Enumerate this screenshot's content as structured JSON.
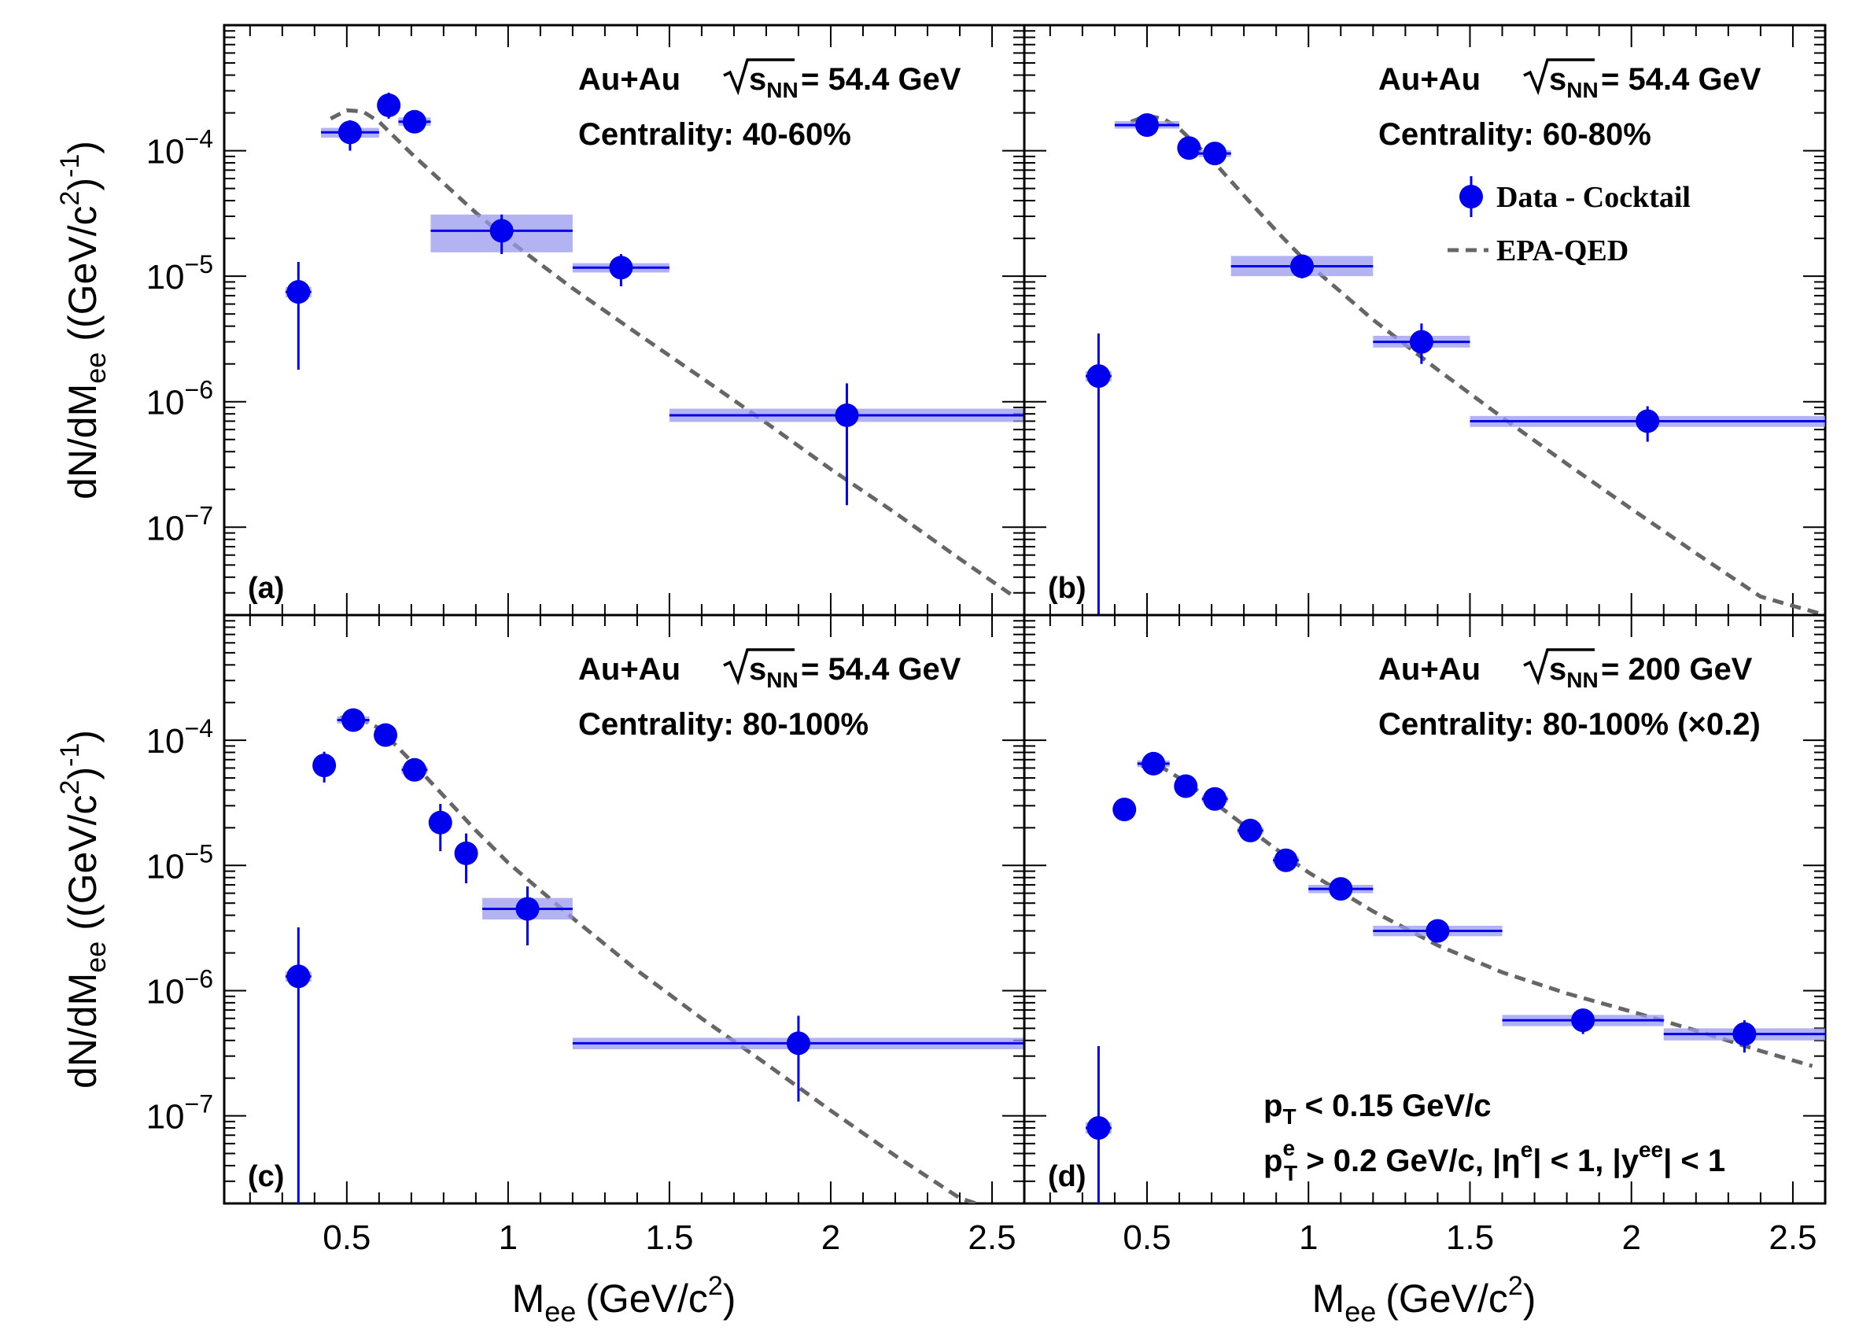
{
  "chart_data": [
    {
      "type": "scatter",
      "panel": "(a)",
      "annotation": {
        "system": "Au+Au",
        "energy": "= 54.4 GeV",
        "centrality": "Centrality: 40-60%"
      },
      "xlabel": "M_ee (GeV/c^2)",
      "ylabel": "dN/dM_ee ((GeV/c^2)^-1)",
      "xlim": [
        0.12,
        2.6
      ],
      "ylim_log10": [
        -7.7,
        -3.0
      ],
      "y_scale": "log",
      "x_tick_labels": [
        "0.5",
        "1",
        "1.5",
        "2",
        "2.5"
      ],
      "y_tick_labels": [
        "10^-7",
        "10^-6",
        "10^-5",
        "10^-4"
      ],
      "series": [
        {
          "name": "Data - Cocktail",
          "points": [
            {
              "x": 0.35,
              "y": 7.5e-06,
              "xlo": 0.31,
              "xhi": 0.39,
              "ylo": 1.8e-06,
              "yhi": 1.3e-05,
              "sys_lo": 6.8e-06,
              "sys_hi": 8.2e-06
            },
            {
              "x": 0.51,
              "y": 0.00014,
              "xlo": 0.42,
              "xhi": 0.6,
              "ylo": 0.0001,
              "yhi": 0.000175,
              "sys_lo": 0.000127,
              "sys_hi": 0.000152
            },
            {
              "x": 0.63,
              "y": 0.00023,
              "xlo": 0.6,
              "xhi": 0.66,
              "ylo": 0.00018,
              "yhi": 0.00029,
              "sys_lo": 0.00021,
              "sys_hi": 0.00025
            },
            {
              "x": 0.71,
              "y": 0.00017,
              "xlo": 0.66,
              "xhi": 0.76,
              "ylo": 0.000145,
              "yhi": 0.0002,
              "sys_lo": 0.000158,
              "sys_hi": 0.000184
            },
            {
              "x": 0.98,
              "y": 2.3e-05,
              "xlo": 0.76,
              "xhi": 1.2,
              "ylo": 1.5e-05,
              "yhi": 3.1e-05,
              "sys_lo": 1.55e-05,
              "sys_hi": 3.1e-05
            },
            {
              "x": 1.35,
              "y": 1.17e-05,
              "xlo": 1.2,
              "xhi": 1.5,
              "ylo": 8.3e-06,
              "yhi": 1.5e-05,
              "sys_lo": 1.07e-05,
              "sys_hi": 1.27e-05
            },
            {
              "x": 2.05,
              "y": 7.8e-07,
              "xlo": 1.5,
              "xhi": 2.6,
              "ylo": 1.5e-07,
              "yhi": 1.4e-06,
              "sys_lo": 6.9e-07,
              "sys_hi": 8.8e-07
            }
          ]
        },
        {
          "name": "EPA-QED",
          "x": [
            0.45,
            0.5,
            0.55,
            0.6,
            0.7,
            0.8,
            0.9,
            1.0,
            1.2,
            1.4,
            1.6,
            1.8,
            2.0,
            2.2,
            2.4,
            2.56
          ],
          "y": [
            0.00018,
            0.00021,
            0.000205,
            0.00017,
            9.5e-05,
            5.5e-05,
            3.2e-05,
            1.95e-05,
            8e-06,
            3.5e-06,
            1.55e-06,
            6.8e-07,
            2.9e-07,
            1.3e-07,
            5.6e-08,
            2.9e-08
          ]
        }
      ]
    },
    {
      "type": "scatter",
      "panel": "(b)",
      "annotation": {
        "system": "Au+Au",
        "energy": "= 54.4 GeV",
        "centrality": "Centrality: 60-80%"
      },
      "xlabel": "M_ee (GeV/c^2)",
      "xlim": [
        0.12,
        2.6
      ],
      "ylim_log10": [
        -7.7,
        -3.0
      ],
      "y_scale": "log",
      "legend": {
        "position": "top-right",
        "entries": [
          "Data - Cocktail",
          "EPA-QED"
        ]
      },
      "series": [
        {
          "name": "Data - Cocktail",
          "points": [
            {
              "x": 0.35,
              "y": 1.6e-06,
              "xlo": 0.31,
              "xhi": 0.39,
              "ylo": 1e-08,
              "yhi": 3.5e-06,
              "sys_lo": 1.45e-06,
              "sys_hi": 1.75e-06
            },
            {
              "x": 0.5,
              "y": 0.00016,
              "xlo": 0.4,
              "xhi": 0.6,
              "ylo": 0.000145,
              "yhi": 0.000185,
              "sys_lo": 0.00015,
              "sys_hi": 0.000172
            },
            {
              "x": 0.63,
              "y": 0.000105,
              "xlo": 0.6,
              "xhi": 0.66,
              "ylo": 9.3e-05,
              "yhi": 0.000118,
              "sys_lo": 9.9e-05,
              "sys_hi": 0.000112
            },
            {
              "x": 0.71,
              "y": 9.5e-05,
              "xlo": 0.66,
              "xhi": 0.76,
              "ylo": 8.5e-05,
              "yhi": 0.000105,
              "sys_lo": 8.9e-05,
              "sys_hi": 0.000101
            },
            {
              "x": 0.98,
              "y": 1.2e-05,
              "xlo": 0.76,
              "xhi": 1.2,
              "ylo": 9.6e-06,
              "yhi": 1.45e-05,
              "sys_lo": 1e-05,
              "sys_hi": 1.45e-05
            },
            {
              "x": 1.35,
              "y": 3e-06,
              "xlo": 1.2,
              "xhi": 1.5,
              "ylo": 2e-06,
              "yhi": 4.2e-06,
              "sys_lo": 2.7e-06,
              "sys_hi": 3.35e-06
            },
            {
              "x": 2.05,
              "y": 7e-07,
              "xlo": 1.5,
              "xhi": 2.6,
              "ylo": 4.8e-07,
              "yhi": 9.2e-07,
              "sys_lo": 6.3e-07,
              "sys_hi": 7.7e-07
            }
          ]
        },
        {
          "name": "EPA-QED",
          "x": [
            0.45,
            0.5,
            0.55,
            0.6,
            0.7,
            0.8,
            0.9,
            1.0,
            1.2,
            1.4,
            1.6,
            1.8,
            2.0,
            2.2,
            2.4,
            2.6
          ],
          "y": [
            0.00017,
            0.00019,
            0.00018,
            0.00015,
            8.5e-05,
            4.4e-05,
            2.3e-05,
            1.25e-05,
            4.5e-06,
            1.8e-06,
            7.5e-07,
            3.2e-07,
            1.4e-07,
            6.2e-08,
            2.8e-08,
            1.2e-08
          ]
        }
      ]
    },
    {
      "type": "scatter",
      "panel": "(c)",
      "annotation": {
        "system": "Au+Au",
        "energy": "= 54.4 GeV",
        "centrality": "Centrality: 80-100%"
      },
      "xlabel": "M_ee (GeV/c^2)",
      "ylabel": "dN/dM_ee ((GeV/c^2)^-1)",
      "xlim": [
        0.12,
        2.6
      ],
      "ylim_log10": [
        -7.7,
        -3.0
      ],
      "y_scale": "log",
      "series": [
        {
          "name": "Data - Cocktail",
          "points": [
            {
              "x": 0.35,
              "y": 1.3e-06,
              "xlo": 0.31,
              "xhi": 0.39,
              "ylo": 1e-08,
              "yhi": 3.2e-06,
              "sys_lo": 1.18e-06,
              "sys_hi": 1.42e-06
            },
            {
              "x": 0.43,
              "y": 6.3e-05,
              "xlo": 0.43,
              "xhi": 0.43,
              "ylo": 4.6e-05,
              "yhi": 8.1e-05,
              "sys_lo": 6.3e-05,
              "sys_hi": 6.3e-05
            },
            {
              "x": 0.52,
              "y": 0.000145,
              "xlo": 0.47,
              "xhi": 0.57,
              "ylo": 0.000128,
              "yhi": 0.000162,
              "sys_lo": 0.000136,
              "sys_hi": 0.000155
            },
            {
              "x": 0.62,
              "y": 0.00011,
              "xlo": 0.62,
              "xhi": 0.62,
              "ylo": 0.0001,
              "yhi": 0.00012,
              "sys_lo": 0.00011,
              "sys_hi": 0.00011
            },
            {
              "x": 0.71,
              "y": 5.8e-05,
              "xlo": 0.67,
              "xhi": 0.75,
              "ylo": 5.1e-05,
              "yhi": 6.5e-05,
              "sys_lo": 5.4e-05,
              "sys_hi": 6.2e-05
            },
            {
              "x": 0.79,
              "y": 2.2e-05,
              "xlo": 0.79,
              "xhi": 0.79,
              "ylo": 1.3e-05,
              "yhi": 3.1e-05,
              "sys_lo": 2.2e-05,
              "sys_hi": 2.2e-05
            },
            {
              "x": 0.87,
              "y": 1.25e-05,
              "xlo": 0.87,
              "xhi": 0.87,
              "ylo": 7.2e-06,
              "yhi": 1.8e-05,
              "sys_lo": 1.25e-05,
              "sys_hi": 1.25e-05
            },
            {
              "x": 1.06,
              "y": 4.5e-06,
              "xlo": 0.92,
              "xhi": 1.2,
              "ylo": 2.3e-06,
              "yhi": 6.8e-06,
              "sys_lo": 3.7e-06,
              "sys_hi": 5.5e-06
            },
            {
              "x": 1.9,
              "y": 3.8e-07,
              "xlo": 1.2,
              "xhi": 2.6,
              "ylo": 1.3e-07,
              "yhi": 6.3e-07,
              "sys_lo": 3.4e-07,
              "sys_hi": 4.2e-07
            }
          ]
        },
        {
          "name": "EPA-QED",
          "x": [
            0.48,
            0.5,
            0.55,
            0.6,
            0.7,
            0.8,
            0.9,
            1.0,
            1.2,
            1.4,
            1.6,
            1.8,
            2.0,
            2.2,
            2.4,
            2.45
          ],
          "y": [
            0.00015,
            0.000155,
            0.000145,
            0.000125,
            6.8e-05,
            3.6e-05,
            1.9e-05,
            1.05e-05,
            3.8e-06,
            1.45e-06,
            6e-07,
            2.6e-07,
            1.1e-07,
            4.8e-08,
            2.2e-08,
            1.8e-08
          ]
        }
      ]
    },
    {
      "type": "scatter",
      "panel": "(d)",
      "annotation": {
        "system": "Au+Au",
        "energy": "= 200 GeV",
        "centrality": "Centrality: 80-100% (×0.2)"
      },
      "cuts": {
        "pt": "p_T < 0.15 GeV/c",
        "single": "p_T^e > 0.2 GeV/c, |η^e| < 1, |y^ee| < 1"
      },
      "xlabel": "M_ee (GeV/c^2)",
      "xlim": [
        0.12,
        2.6
      ],
      "ylim_log10": [
        -7.7,
        -3.0
      ],
      "y_scale": "log",
      "series": [
        {
          "name": "Data - Cocktail",
          "points": [
            {
              "x": 0.35,
              "y": 8e-08,
              "xlo": 0.31,
              "xhi": 0.39,
              "ylo": 1e-08,
              "yhi": 3.6e-07,
              "sys_lo": 7.2e-08,
              "sys_hi": 8.9e-08
            },
            {
              "x": 0.43,
              "y": 2.8e-05,
              "xlo": 0.43,
              "xhi": 0.43,
              "ylo": 2.5e-05,
              "yhi": 3.1e-05,
              "sys_lo": 2.8e-05,
              "sys_hi": 2.8e-05
            },
            {
              "x": 0.52,
              "y": 6.5e-05,
              "xlo": 0.47,
              "xhi": 0.57,
              "ylo": 6e-05,
              "yhi": 7e-05,
              "sys_lo": 6.1e-05,
              "sys_hi": 6.9e-05
            },
            {
              "x": 0.62,
              "y": 4.3e-05,
              "xlo": 0.62,
              "xhi": 0.62,
              "ylo": 3.9e-05,
              "yhi": 4.7e-05,
              "sys_lo": 4.3e-05,
              "sys_hi": 4.3e-05
            },
            {
              "x": 0.71,
              "y": 3.4e-05,
              "xlo": 0.67,
              "xhi": 0.75,
              "ylo": 3.1e-05,
              "yhi": 3.7e-05,
              "sys_lo": 3.2e-05,
              "sys_hi": 3.6e-05
            },
            {
              "x": 0.82,
              "y": 1.9e-05,
              "xlo": 0.78,
              "xhi": 0.86,
              "ylo": 1.75e-05,
              "yhi": 2.05e-05,
              "sys_lo": 1.78e-05,
              "sys_hi": 2.02e-05
            },
            {
              "x": 0.93,
              "y": 1.1e-05,
              "xlo": 0.89,
              "xhi": 0.97,
              "ylo": 1e-05,
              "yhi": 1.2e-05,
              "sys_lo": 1.03e-05,
              "sys_hi": 1.17e-05
            },
            {
              "x": 1.1,
              "y": 6.5e-06,
              "xlo": 1.0,
              "xhi": 1.2,
              "ylo": 6e-06,
              "yhi": 7e-06,
              "sys_lo": 6e-06,
              "sys_hi": 7e-06
            },
            {
              "x": 1.4,
              "y": 3e-06,
              "xlo": 1.2,
              "xhi": 1.6,
              "ylo": 2.8e-06,
              "yhi": 3.2e-06,
              "sys_lo": 2.72e-06,
              "sys_hi": 3.3e-06
            },
            {
              "x": 1.85,
              "y": 5.8e-07,
              "xlo": 1.6,
              "xhi": 2.1,
              "ylo": 4.5e-07,
              "yhi": 7.1e-07,
              "sys_lo": 5.2e-07,
              "sys_hi": 6.4e-07
            },
            {
              "x": 2.35,
              "y": 4.5e-07,
              "xlo": 2.1,
              "xhi": 2.6,
              "ylo": 3.2e-07,
              "yhi": 5.8e-07,
              "sys_lo": 4e-07,
              "sys_hi": 5e-07
            }
          ]
        },
        {
          "name": "EPA-QED",
          "x": [
            0.48,
            0.5,
            0.55,
            0.6,
            0.7,
            0.8,
            0.9,
            1.0,
            1.2,
            1.4,
            1.6,
            1.8,
            2.0,
            2.2,
            2.4,
            2.56
          ],
          "y": [
            6.2e-05,
            6.5e-05,
            6e-05,
            5e-05,
            3.3e-05,
            2.1e-05,
            1.35e-05,
            8.8e-06,
            4.3e-06,
            2.3e-06,
            1.4e-06,
            9.5e-07,
            6.8e-07,
            4.8e-07,
            3.3e-07,
            2.5e-07
          ]
        }
      ]
    }
  ],
  "labels": {
    "x_axis_main": "M",
    "x_axis_sub": "ee",
    "x_axis_unit": "(GeV/c",
    "x_axis_sup": "2",
    "x_axis_close": ")",
    "y_axis_main": "dN/dM",
    "y_axis_sub": "ee",
    "y_axis_unit": "((GeV/c",
    "y_axis_sup1": "2",
    "y_axis_mid": ")",
    "y_axis_sup2": "-1",
    "y_axis_close": ")",
    "x_ticks": [
      "0.5",
      "1",
      "1.5",
      "2",
      "2.5"
    ],
    "y_ticks": [
      {
        "base": "10",
        "exp": "−7"
      },
      {
        "base": "10",
        "exp": "−6"
      },
      {
        "base": "10",
        "exp": "−5"
      },
      {
        "base": "10",
        "exp": "−4"
      }
    ],
    "sqrt_s": "s",
    "sqrt_sub": "NN",
    "legend_data": "Data - Cocktail",
    "legend_model": "EPA-QED",
    "cut_pt_main": "p",
    "cut_pt_sub": "T",
    "cut_pt_rest": " < 0.15 GeV/c",
    "cut_e_main": "p",
    "cut_e_sub": "T",
    "cut_e_sup": "e",
    "cut_e_rest1": " > 0.2 GeV/c, |η",
    "cut_e_sup2": "e",
    "cut_e_rest2": "| < 1, |y",
    "cut_e_sup3": "ee",
    "cut_e_rest3": "| < 1"
  },
  "colors": {
    "marker": "#0000ee",
    "sys_box": "#9999f0",
    "model": "#666666",
    "axis": "#000000"
  }
}
